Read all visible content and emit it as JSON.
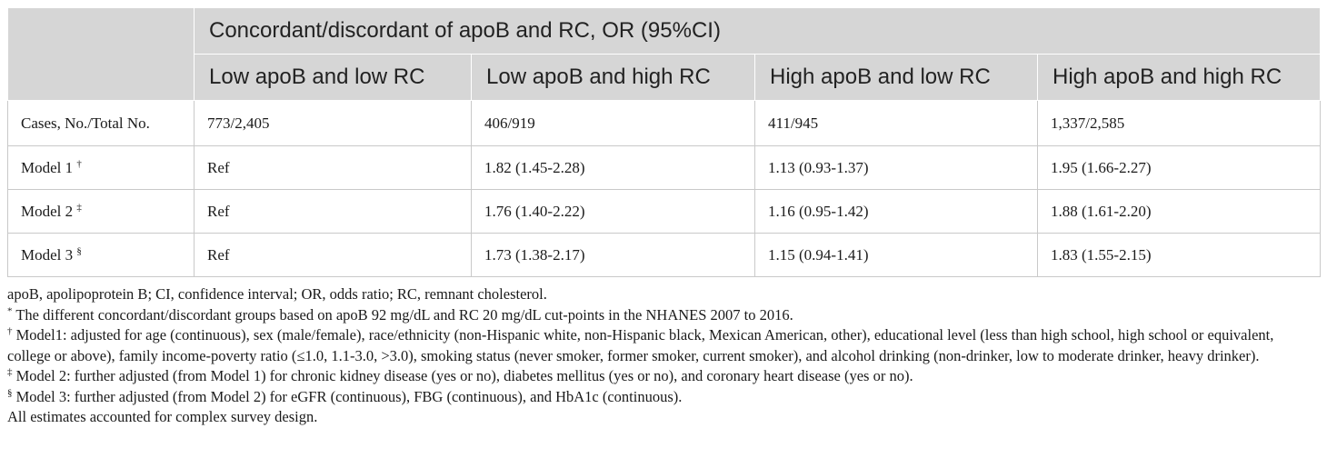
{
  "table": {
    "group_header": "Concordant/discordant of apoB and RC, OR (95%CI)",
    "column_headers": [
      "Low apoB and low RC",
      "Low apoB and high RC",
      "High apoB and low RC",
      "High apoB and high RC"
    ],
    "rows": [
      {
        "label": "Cases, No./Total No.",
        "mark": "",
        "cells": [
          "773/2,405",
          "406/919",
          "411/945",
          "1,337/2,585"
        ]
      },
      {
        "label": "Model 1 ",
        "mark": "†",
        "cells": [
          "Ref",
          "1.82 (1.45-2.28)",
          "1.13 (0.93-1.37)",
          "1.95 (1.66-2.27)"
        ]
      },
      {
        "label": "Model 2 ",
        "mark": "‡",
        "cells": [
          "Ref",
          "1.76 (1.40-2.22)",
          "1.16 (0.95-1.42)",
          "1.88 (1.61-2.20)"
        ]
      },
      {
        "label": "Model 3 ",
        "mark": "§",
        "cells": [
          "Ref",
          "1.73 (1.38-2.17)",
          "1.15 (0.94-1.41)",
          "1.83 (1.55-2.15)"
        ]
      }
    ]
  },
  "footnotes": [
    {
      "mark": "",
      "text": "apoB, apolipoprotein B; CI, confidence interval; OR, odds ratio; RC, remnant cholesterol."
    },
    {
      "mark": "*",
      "text": " The different concordant/discordant groups based on apoB 92 mg/dL and RC 20 mg/dL cut-points in the NHANES 2007 to 2016."
    },
    {
      "mark": "†",
      "text": " Model1: adjusted for age (continuous), sex (male/female), race/ethnicity (non-Hispanic white, non-Hispanic black, Mexican American, other), educational level (less than high school, high school or equivalent, college or above), family income-poverty ratio (≤1.0, 1.1-3.0, >3.0), smoking status (never smoker, former smoker, current smoker), and alcohol drinking (non-drinker, low to moderate drinker, heavy drinker)."
    },
    {
      "mark": "‡",
      "text": " Model 2: further adjusted (from Model 1) for chronic kidney disease (yes or no), diabetes mellitus (yes or no), and coronary heart disease (yes or no)."
    },
    {
      "mark": "§",
      "text": " Model 3: further adjusted (from Model 2) for eGFR (continuous), FBG (continuous), and HbA1c (continuous)."
    },
    {
      "mark": "",
      "text": "All estimates accounted for complex survey design."
    }
  ]
}
